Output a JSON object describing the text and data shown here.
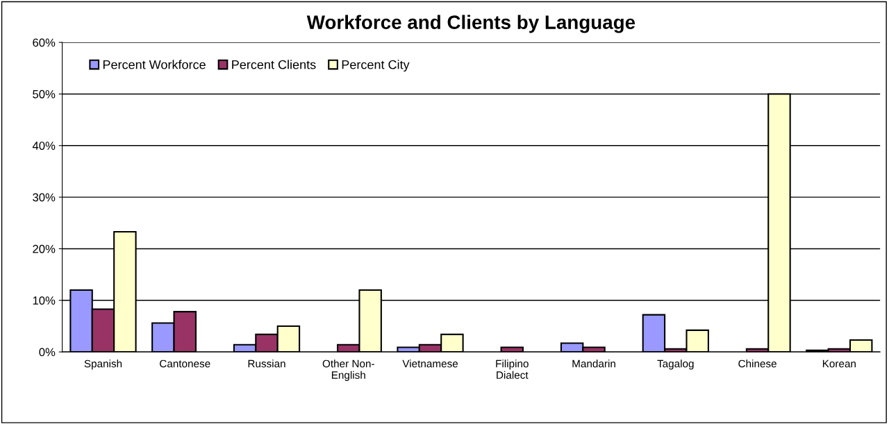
{
  "chart_data": {
    "type": "bar",
    "title": "Workforce and Clients by Language",
    "categories": [
      "Spanish",
      "Cantonese",
      "Russian",
      "Other Non-\nEnglish",
      "Vietnamese",
      "Filipino\nDialect",
      "Mandarin",
      "Tagalog",
      "Chinese",
      "Korean"
    ],
    "series": [
      {
        "name": "Percent Workforce",
        "color": "#9999ff",
        "values": [
          12.0,
          5.6,
          1.4,
          null,
          0.9,
          null,
          1.7,
          7.2,
          null,
          0.3
        ]
      },
      {
        "name": "Percent Clients",
        "color": "#993366",
        "values": [
          8.3,
          7.8,
          3.4,
          1.4,
          1.4,
          0.9,
          0.9,
          0.6,
          0.6,
          0.6
        ]
      },
      {
        "name": "Percent City",
        "color": "#ffffcc",
        "values": [
          23.3,
          null,
          5.0,
          12.0,
          3.4,
          null,
          null,
          4.2,
          50.0,
          2.3
        ]
      }
    ],
    "ylim": [
      0,
      60
    ],
    "yticks": [
      {
        "value": 0,
        "label": "0%"
      },
      {
        "value": 10,
        "label": "10%"
      },
      {
        "value": 20,
        "label": "20%"
      },
      {
        "value": 30,
        "label": "30%"
      },
      {
        "value": 40,
        "label": "40%"
      },
      {
        "value": 50,
        "label": "50%"
      },
      {
        "value": 60,
        "label": "60%"
      }
    ],
    "grid": "y",
    "legend": "top left"
  }
}
